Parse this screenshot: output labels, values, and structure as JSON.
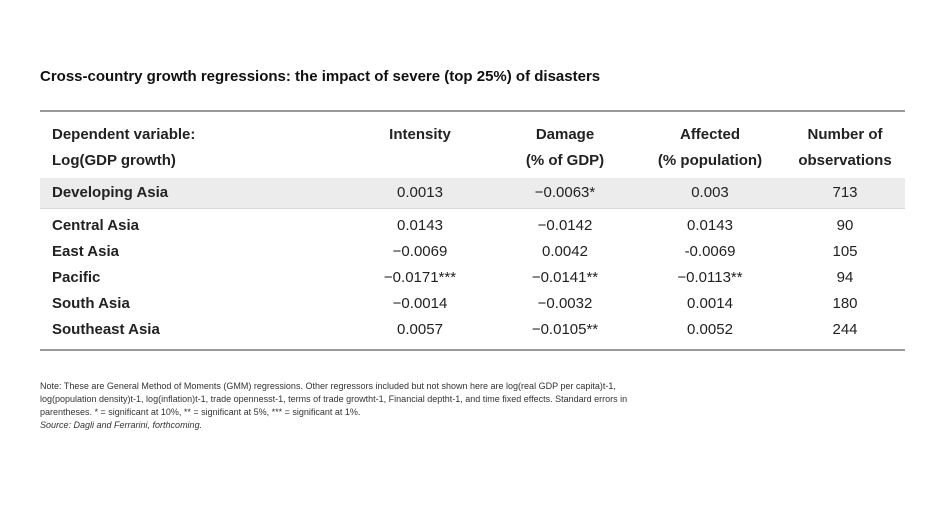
{
  "title": "Cross-country growth regressions: the impact of severe (top 25%) of disasters",
  "table": {
    "headers": [
      {
        "line1": "Dependent variable:",
        "line2": "Log(GDP growth)"
      },
      {
        "line1": "Intensity",
        "line2": ""
      },
      {
        "line1": "Damage",
        "line2": "(% of GDP)"
      },
      {
        "line1": "Affected",
        "line2": "(% population)"
      },
      {
        "line1": "Number of",
        "line2": "observations"
      }
    ],
    "rows": [
      {
        "region": "Developing Asia",
        "intensity": "0.0013",
        "damage": "−0.0063*",
        "affected": "0.003",
        "obs": "713"
      },
      {
        "region": "Central Asia",
        "intensity": "0.0143",
        "damage": "−0.0142",
        "affected": "0.0143",
        "obs": "90"
      },
      {
        "region": "East Asia",
        "intensity": "−0.0069",
        "damage": "0.0042",
        "affected": "-0.0069",
        "obs": "105"
      },
      {
        "region": "Pacific",
        "intensity": "−0.0171***",
        "damage": "−0.0141**",
        "affected": "−0.0113**",
        "obs": "94"
      },
      {
        "region": "South Asia",
        "intensity": "−0.0014",
        "damage": "−0.0032",
        "affected": "0.0014",
        "obs": "180"
      },
      {
        "region": "Southeast Asia",
        "intensity": "0.0057",
        "damage": "−0.0105**",
        "affected": "0.0052",
        "obs": "244"
      }
    ]
  },
  "note": {
    "line1": "Note: These are General Method of Moments (GMM) regressions. Other regressors included but not shown here are log(real GDP per capita)t-1,",
    "line2": "log(population density)t-1, log(inflation)t-1, trade opennesst-1, terms of trade growtht-1, Financial deptht-1, and time fixed effects. Standard errors in",
    "line3": "parentheses. * = significant at 10%, ** = significant at 5%, *** = significant at 1%.",
    "source": "Source: Dagli and Ferrarini, forthcoming."
  }
}
